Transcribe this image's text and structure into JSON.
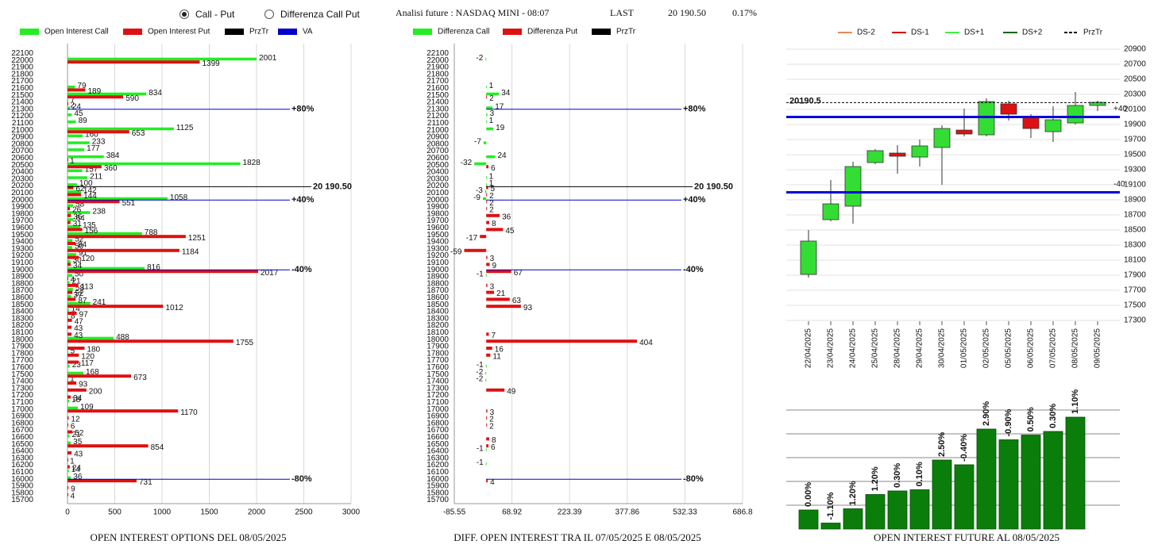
{
  "header": {
    "options": [
      "Call - Put",
      "Differenza Call Put"
    ],
    "selected": 0,
    "title": "Analisi future : NASDAQ MINI - 08:07",
    "last_label": "LAST",
    "last_value": "20 190.50",
    "change": "0.17%"
  },
  "chart_data": [
    {
      "type": "hbar",
      "title": "OPEN INTEREST OPTIONS DEL 08/05/2025",
      "categories": [
        22100,
        22000,
        21900,
        21800,
        21700,
        21600,
        21500,
        21400,
        21300,
        21200,
        21100,
        21000,
        20900,
        20800,
        20700,
        20600,
        20500,
        20400,
        20300,
        20200,
        20100,
        20000,
        19900,
        19800,
        19700,
        19600,
        19500,
        19400,
        19300,
        19200,
        19100,
        19000,
        18900,
        18800,
        18700,
        18600,
        18500,
        18400,
        18300,
        18200,
        18100,
        18000,
        17900,
        17800,
        17700,
        17600,
        17500,
        17400,
        17300,
        17200,
        17100,
        17000,
        16900,
        16800,
        16700,
        16600,
        16500,
        16400,
        16300,
        16200,
        16100,
        16000,
        15900,
        15800,
        15700
      ],
      "ylim": [
        15650,
        22150
      ],
      "xlim": [
        0,
        3000
      ],
      "xticks": [
        0,
        500,
        1000,
        1500,
        2000,
        2500,
        3000
      ],
      "grid": true,
      "series": [
        {
          "name": "Open Interest Call",
          "color": "#22ee22",
          "values": [
            null,
            2001,
            null,
            null,
            null,
            79,
            834,
            7,
            24,
            45,
            89,
            1125,
            160,
            233,
            177,
            384,
            1828,
            157,
            211,
            100,
            142,
            1058,
            58,
            238,
            64,
            135,
            788,
            52,
            50,
            91,
            30,
            816,
            50,
            21,
            58,
            37,
            241,
            14,
            8,
            null,
            null,
            488,
            null,
            5,
            null,
            23,
            168,
            1,
            null,
            null,
            18,
            109,
            null,
            null,
            null,
            21,
            35,
            null,
            null,
            null,
            14,
            36,
            null,
            null,
            null
          ]
        },
        {
          "name": "Open Interest Put",
          "color": "#dd1111",
          "values": [
            null,
            1399,
            null,
            null,
            null,
            189,
            590,
            2,
            null,
            null,
            null,
            653,
            null,
            null,
            null,
            1,
            360,
            null,
            null,
            62,
            144,
            551,
            26,
            36,
            31,
            156,
            1251,
            84,
            1184,
            120,
            34,
            2017,
            4,
            113,
            52,
            87,
            1012,
            97,
            47,
            43,
            43,
            1755,
            180,
            120,
            117,
            null,
            673,
            93,
            200,
            34,
            null,
            1170,
            12,
            6,
            52,
            null,
            854,
            43,
            1,
            24,
            null,
            731,
            9,
            4,
            null
          ]
        }
      ],
      "lines": [
        {
          "name": "PrzTr",
          "color": "#000000",
          "items": [
            {
              "value": 20190.5,
              "label": "20 190.50"
            }
          ]
        },
        {
          "name": "VA",
          "color": "#0000cc",
          "items": [
            {
              "value": 21300,
              "label": "+80%"
            },
            {
              "value": 20000,
              "label": "+40%"
            },
            {
              "value": 19000,
              "label": "-40%"
            },
            {
              "value": 16000,
              "label": "-80%"
            }
          ]
        }
      ]
    },
    {
      "type": "hbar",
      "title": "DIFF. OPEN INTEREST TRA IL 07/05/2025 E 08/05/2025",
      "categories": [
        22100,
        22000,
        21900,
        21800,
        21700,
        21600,
        21500,
        21400,
        21300,
        21200,
        21100,
        21000,
        20900,
        20800,
        20700,
        20600,
        20500,
        20400,
        20300,
        20200,
        20100,
        20000,
        19900,
        19800,
        19700,
        19600,
        19500,
        19400,
        19300,
        19200,
        19100,
        19000,
        18900,
        18800,
        18700,
        18600,
        18500,
        18400,
        18300,
        18200,
        18100,
        18000,
        17900,
        17800,
        17700,
        17600,
        17500,
        17400,
        17300,
        17200,
        17100,
        17000,
        16900,
        16800,
        16700,
        16600,
        16500,
        16400,
        16300,
        16200,
        16100,
        16000,
        15900,
        15800,
        15700
      ],
      "ylim": [
        15650,
        22150
      ],
      "xlim": [
        -85.55,
        686.8
      ],
      "xticks": [
        -85.55,
        68.92,
        223.39,
        377.86,
        532.33,
        686.8
      ],
      "grid": true,
      "series": [
        {
          "name": "Differenza Call",
          "color": "#22ee22",
          "values": [
            null,
            -2,
            null,
            null,
            null,
            1,
            34,
            null,
            17,
            3,
            1,
            19,
            null,
            -7,
            null,
            24,
            -32,
            null,
            1,
            1,
            -3,
            -9,
            null,
            null,
            null,
            null,
            null,
            null,
            null,
            null,
            null,
            null,
            -1,
            null,
            null,
            null,
            null,
            null,
            null,
            null,
            null,
            null,
            null,
            null,
            null,
            -1,
            -2,
            -2,
            null,
            null,
            null,
            null,
            null,
            null,
            null,
            null,
            null,
            -1,
            null,
            -1,
            null,
            null,
            null,
            null,
            null
          ]
        },
        {
          "name": "Differenza Put",
          "color": "#dd1111",
          "values": [
            null,
            null,
            null,
            null,
            null,
            null,
            2,
            null,
            null,
            null,
            null,
            null,
            null,
            null,
            null,
            null,
            6,
            null,
            null,
            5,
            2,
            2,
            2,
            36,
            8,
            45,
            -17,
            null,
            -59,
            3,
            9,
            67,
            null,
            3,
            21,
            63,
            93,
            null,
            null,
            null,
            7,
            404,
            16,
            11,
            null,
            null,
            null,
            null,
            49,
            null,
            null,
            3,
            2,
            2,
            null,
            8,
            6,
            null,
            null,
            null,
            null,
            4,
            null,
            null,
            null
          ]
        }
      ],
      "lines": [
        {
          "name": "PrzTr",
          "color": "#000000",
          "items": [
            {
              "value": 20190.5,
              "label": "20 190.50"
            }
          ]
        },
        {
          "color": "#0000cc",
          "items": [
            {
              "value": 21300,
              "label": "+80%"
            },
            {
              "value": 20000,
              "label": "+40%"
            },
            {
              "value": 19000,
              "label": "-40%"
            },
            {
              "value": 16000,
              "label": "-80%"
            }
          ]
        }
      ]
    },
    {
      "type": "candlestick",
      "categories": [
        "22/04/2025",
        "23/04/2025",
        "24/04/2025",
        "25/04/2025",
        "28/04/2025",
        "29/04/2025",
        "30/04/2025",
        "01/05/2025",
        "02/05/2025",
        "05/05/2025",
        "06/05/2025",
        "07/05/2025",
        "08/05/2025",
        "09/05/2025"
      ],
      "open": [
        17911,
        18637,
        18816,
        19395,
        19521,
        19468,
        19595,
        19826,
        19763,
        20174,
        20005,
        19805,
        19921,
        20153
      ],
      "high": [
        18500,
        19163,
        19405,
        19574,
        19626,
        19700,
        19890,
        20111,
        20247,
        20216,
        20037,
        20142,
        20332,
        20216
      ],
      "low": [
        17868,
        18616,
        18584,
        19374,
        19247,
        19342,
        19100,
        19742,
        19742,
        19953,
        19721,
        19668,
        19900,
        20079
      ],
      "close": [
        18353,
        18847,
        19342,
        19553,
        19479,
        19616,
        19847,
        19774,
        20205,
        20037,
        19847,
        19963,
        20153,
        20195
      ],
      "up_color": "#33dd33",
      "down_color": "#dd1111",
      "ylim": [
        17300,
        20900
      ],
      "yticks": [
        20900,
        20700,
        20500,
        20300,
        20100,
        19900,
        19700,
        19500,
        19300,
        19100,
        18900,
        18700,
        18500,
        18300,
        18100,
        17900,
        17700,
        17500,
        17300
      ],
      "grid": true,
      "legend": [
        {
          "name": "DS-2",
          "color": "#e08a5a"
        },
        {
          "name": "DS-1",
          "color": "#cc0000"
        },
        {
          "name": "DS+1",
          "color": "#44ee44"
        },
        {
          "name": "DS+2",
          "color": "#006600"
        }
      ],
      "lines": [
        {
          "name": "PrzTr",
          "color": "#000000",
          "dash": true,
          "items": [
            {
              "value": 20190.5,
              "label": "20190.5"
            }
          ]
        },
        {
          "color": "#0000dd",
          "items": [
            {
              "value": 20000,
              "label": "+40"
            },
            {
              "value": 19000,
              "label": "-40"
            }
          ]
        }
      ]
    },
    {
      "type": "bar",
      "title": "OPEN INTEREST FUTURE AL 08/05/2025",
      "values": [
        0.8,
        0.25,
        0.85,
        1.45,
        1.6,
        1.65,
        2.9,
        2.7,
        4.2,
        3.75,
        3.95,
        4.1,
        4.7
      ],
      "bar_labels": [
        "0.00%",
        "-1.10%",
        "1.20%",
        "1.20%",
        "0.30%",
        "0.10%",
        "2.50%",
        "-0.40%",
        "2.90%",
        "-0.90%",
        "0.50%",
        "0.30%",
        "1.10%"
      ],
      "color": "#0b7d0b",
      "ylim": [
        0,
        5
      ],
      "yticks": [
        1,
        2,
        3,
        4,
        5
      ],
      "grid": true,
      "tick_labels": false
    }
  ]
}
